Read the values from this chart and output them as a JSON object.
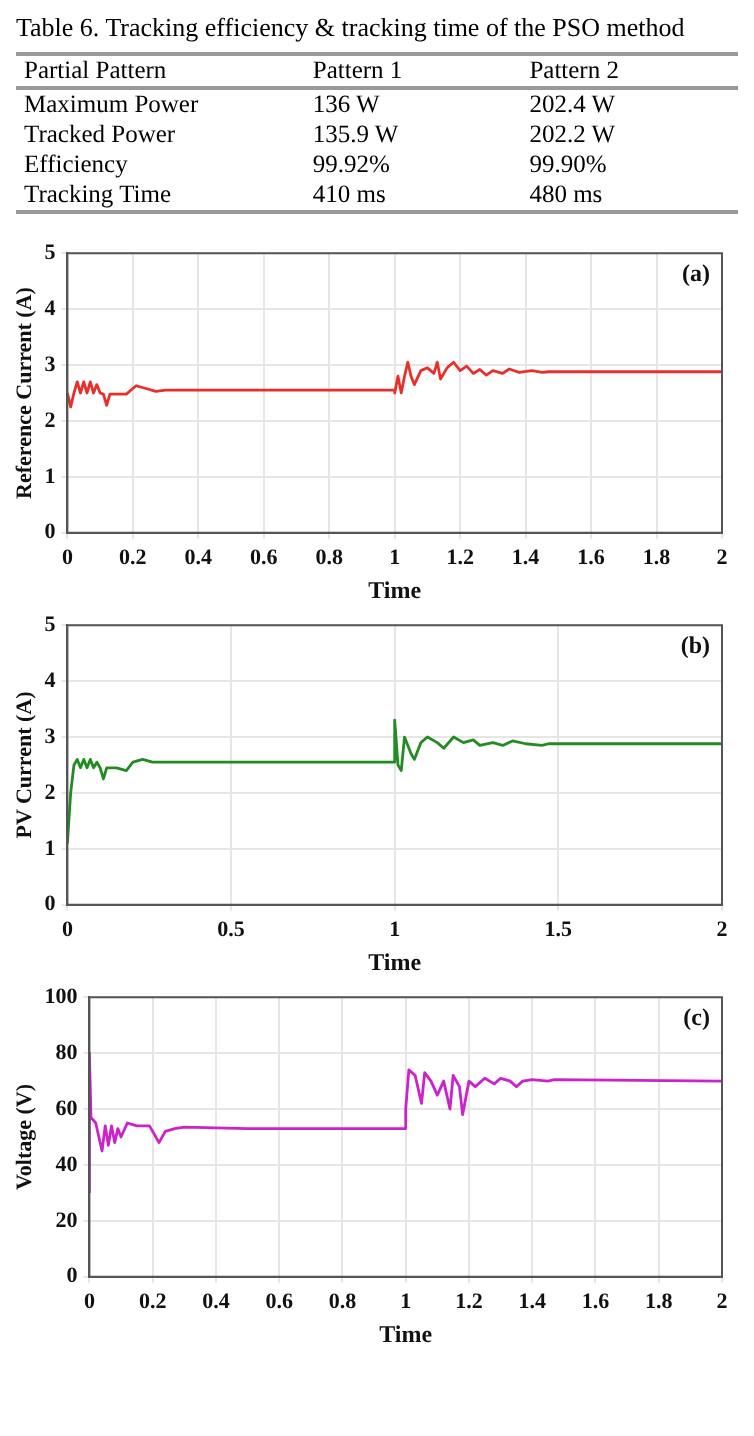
{
  "chart_data": [
    {
      "type": "other",
      "title": "Table 6.  Tracking efficiency & tracking time of the PSO method",
      "annotations": [
        "Partial Pattern",
        "Pattern 1",
        "Pattern 2",
        "Maximum Power",
        "136 W",
        "202.4 W",
        "Tracked Power",
        "135.9 W",
        "202.2 W",
        "Efficiency",
        "99.92%",
        "99.90%",
        "Tracking Time",
        "410 ms",
        "480 ms"
      ]
    },
    {
      "type": "line",
      "xlabel": "Time",
      "ylabel": "Reference Current (A)",
      "annotations": [
        "(a)"
      ],
      "xlim": [
        0,
        2
      ],
      "xticks": [
        0,
        0.2,
        0.4,
        0.6,
        0.8,
        1,
        1.2,
        1.4,
        1.6,
        1.8,
        2
      ],
      "ylim": [
        0,
        5
      ],
      "yticks": [
        0,
        1,
        2,
        3,
        4,
        5
      ],
      "grid": true,
      "legend": false,
      "marker": "none",
      "line_style": "solid",
      "series": [
        {
          "color": "#e8302a",
          "x": [
            0,
            0.01,
            0.02,
            0.03,
            0.04,
            0.05,
            0.06,
            0.07,
            0.08,
            0.09,
            0.1,
            0.11,
            0.12,
            0.13,
            0.18,
            0.2,
            0.21,
            0.24,
            0.27,
            0.3,
            0.35,
            0.5,
            1.0,
            1.0,
            1.01,
            1.02,
            1.03,
            1.04,
            1.05,
            1.06,
            1.08,
            1.1,
            1.12,
            1.13,
            1.14,
            1.16,
            1.18,
            1.2,
            1.22,
            1.24,
            1.26,
            1.28,
            1.3,
            1.33,
            1.35,
            1.38,
            1.42,
            1.45,
            1.47,
            2
          ],
          "values": [
            2.5,
            2.25,
            2.5,
            2.7,
            2.5,
            2.7,
            2.5,
            2.7,
            2.5,
            2.65,
            2.5,
            2.48,
            2.28,
            2.48,
            2.48,
            2.58,
            2.63,
            2.58,
            2.53,
            2.55,
            2.55,
            2.55,
            2.55,
            2.5,
            2.8,
            2.5,
            2.8,
            3.05,
            2.8,
            2.65,
            2.9,
            2.95,
            2.85,
            3.05,
            2.75,
            2.95,
            3.05,
            2.9,
            2.98,
            2.85,
            2.92,
            2.82,
            2.9,
            2.85,
            2.93,
            2.87,
            2.9,
            2.87,
            2.88,
            2.88
          ]
        }
      ]
    },
    {
      "type": "line",
      "xlabel": "Time",
      "ylabel": "PV Current (A)",
      "annotations": [
        "(b)"
      ],
      "xlim": [
        0,
        2
      ],
      "xticks": [
        0,
        0.5,
        1,
        1.5,
        2
      ],
      "ylim": [
        0,
        5
      ],
      "yticks": [
        0,
        1,
        2,
        3,
        4,
        5
      ],
      "grid": true,
      "legend": false,
      "marker": "none",
      "line_style": "solid",
      "series": [
        {
          "color": "#228b22",
          "x": [
            0,
            0.01,
            0.02,
            0.03,
            0.04,
            0.05,
            0.06,
            0.07,
            0.08,
            0.09,
            0.1,
            0.11,
            0.12,
            0.15,
            0.18,
            0.2,
            0.23,
            0.26,
            0.3,
            0.5,
            1.0,
            1.0,
            1.01,
            1.02,
            1.03,
            1.05,
            1.06,
            1.08,
            1.1,
            1.13,
            1.15,
            1.18,
            1.21,
            1.24,
            1.26,
            1.3,
            1.33,
            1.36,
            1.4,
            1.45,
            1.47,
            2
          ],
          "values": [
            1.1,
            2.0,
            2.5,
            2.6,
            2.45,
            2.6,
            2.45,
            2.6,
            2.45,
            2.55,
            2.45,
            2.25,
            2.45,
            2.45,
            2.4,
            2.55,
            2.6,
            2.55,
            2.55,
            2.55,
            2.55,
            3.3,
            2.5,
            2.4,
            3.0,
            2.7,
            2.6,
            2.9,
            3.0,
            2.9,
            2.8,
            3.0,
            2.9,
            2.95,
            2.85,
            2.9,
            2.85,
            2.93,
            2.88,
            2.85,
            2.88,
            2.88
          ]
        }
      ]
    },
    {
      "type": "line",
      "xlabel": "Time",
      "ylabel": "Voltage (V)",
      "annotations": [
        "(c)"
      ],
      "xlim": [
        0,
        2
      ],
      "xticks": [
        0,
        0.2,
        0.4,
        0.6,
        0.8,
        1,
        1.2,
        1.4,
        1.6,
        1.8,
        2
      ],
      "ylim": [
        0,
        100
      ],
      "yticks": [
        0,
        20,
        40,
        60,
        80,
        100
      ],
      "grid": true,
      "legend": false,
      "marker": "none",
      "line_style": "solid",
      "series": [
        {
          "color": "#cc22cc",
          "x": [
            0,
            0,
            0.005,
            0.02,
            0.04,
            0.05,
            0.06,
            0.07,
            0.08,
            0.09,
            0.1,
            0.12,
            0.15,
            0.19,
            0.2,
            0.22,
            0.24,
            0.27,
            0.3,
            0.5,
            1.0,
            1.0,
            1.01,
            1.03,
            1.05,
            1.06,
            1.08,
            1.1,
            1.12,
            1.14,
            1.15,
            1.17,
            1.18,
            1.2,
            1.22,
            1.25,
            1.28,
            1.3,
            1.33,
            1.35,
            1.37,
            1.4,
            1.45,
            1.47,
            2
          ],
          "values": [
            30,
            80,
            57,
            55,
            45,
            54,
            47,
            54,
            48,
            53,
            50,
            55,
            54,
            54,
            52,
            48,
            52,
            53,
            53.5,
            53,
            53,
            60,
            74,
            72,
            62,
            73,
            70,
            65,
            70,
            60,
            72,
            68,
            58,
            70,
            68,
            71,
            69,
            71,
            70,
            68,
            70,
            70.5,
            70,
            70.5,
            70
          ]
        }
      ]
    }
  ]
}
